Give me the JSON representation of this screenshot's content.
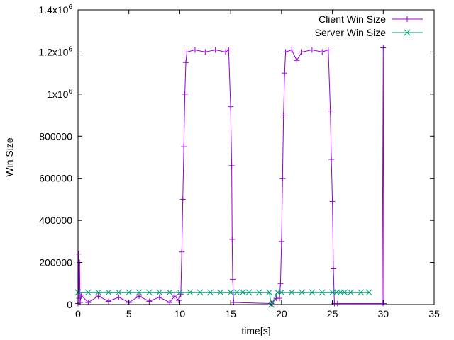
{
  "chart_data": {
    "type": "line",
    "title": "",
    "xlabel": "time[s]",
    "ylabel": "Win Size",
    "xlim": [
      0,
      35
    ],
    "ylim": [
      0,
      1400000
    ],
    "grid": false,
    "legend_position": "top-right",
    "x_ticks": [
      {
        "value": 0,
        "label": "0"
      },
      {
        "value": 5,
        "label": "5"
      },
      {
        "value": 10,
        "label": "10"
      },
      {
        "value": 15,
        "label": "15"
      },
      {
        "value": 20,
        "label": "20"
      },
      {
        "value": 25,
        "label": "25"
      },
      {
        "value": 30,
        "label": "30"
      },
      {
        "value": 35,
        "label": "35"
      }
    ],
    "y_ticks": [
      {
        "value": 0,
        "label": "0",
        "sup": ""
      },
      {
        "value": 200000,
        "label": "200000",
        "sup": ""
      },
      {
        "value": 400000,
        "label": "400000",
        "sup": ""
      },
      {
        "value": 600000,
        "label": "600000",
        "sup": ""
      },
      {
        "value": 800000,
        "label": "800000",
        "sup": ""
      },
      {
        "value": 1000000,
        "label": "1x10",
        "sup": "6"
      },
      {
        "value": 1200000,
        "label": "1.2x10",
        "sup": "6"
      },
      {
        "value": 1400000,
        "label": "1.4x10",
        "sup": "6"
      }
    ],
    "series": [
      {
        "name": "Client Win Size",
        "color": "#9400d3",
        "marker": "plus",
        "points": [
          [
            0.0,
            5000
          ],
          [
            0.05,
            240000
          ],
          [
            0.1,
            30000
          ],
          [
            0.15,
            200000
          ],
          [
            0.2,
            10000
          ],
          [
            0.3,
            45000
          ],
          [
            1.0,
            10000
          ],
          [
            2.0,
            40000
          ],
          [
            3.0,
            15000
          ],
          [
            4.0,
            35000
          ],
          [
            5.0,
            10000
          ],
          [
            6.0,
            40000
          ],
          [
            7.0,
            15000
          ],
          [
            8.0,
            35000
          ],
          [
            9.0,
            10000
          ],
          [
            9.5,
            40000
          ],
          [
            9.9,
            20000
          ],
          [
            10.1,
            50000
          ],
          [
            10.2,
            250000
          ],
          [
            10.3,
            500000
          ],
          [
            10.4,
            750000
          ],
          [
            10.5,
            1000000
          ],
          [
            10.6,
            1150000
          ],
          [
            10.7,
            1200000
          ],
          [
            11.5,
            1210000
          ],
          [
            12.5,
            1200000
          ],
          [
            13.5,
            1210000
          ],
          [
            14.5,
            1200000
          ],
          [
            14.8,
            1210000
          ],
          [
            15.0,
            940000
          ],
          [
            15.1,
            660000
          ],
          [
            15.15,
            310000
          ],
          [
            15.2,
            120000
          ],
          [
            15.3,
            10000
          ],
          [
            19.0,
            5000
          ],
          [
            19.5,
            30000
          ],
          [
            19.8,
            30000
          ],
          [
            19.9,
            100000
          ],
          [
            20.0,
            300000
          ],
          [
            20.1,
            600000
          ],
          [
            20.2,
            900000
          ],
          [
            20.3,
            1100000
          ],
          [
            20.4,
            1200000
          ],
          [
            21.0,
            1210000
          ],
          [
            21.5,
            1160000
          ],
          [
            22.0,
            1200000
          ],
          [
            23.0,
            1210000
          ],
          [
            24.0,
            1200000
          ],
          [
            24.6,
            1210000
          ],
          [
            24.8,
            920000
          ],
          [
            24.9,
            690000
          ],
          [
            25.0,
            490000
          ],
          [
            25.1,
            170000
          ],
          [
            25.2,
            5000
          ],
          [
            25.5,
            5000
          ],
          [
            29.9,
            5000
          ],
          [
            30.0,
            1220000
          ],
          [
            30.05,
            5000
          ]
        ]
      },
      {
        "name": "Server Win Size",
        "color": "#009e73",
        "marker": "cross",
        "points": [
          [
            0.0,
            58000
          ],
          [
            1.0,
            58000
          ],
          [
            2.0,
            58000
          ],
          [
            3.0,
            58000
          ],
          [
            4.0,
            58000
          ],
          [
            5.0,
            58000
          ],
          [
            6.0,
            58000
          ],
          [
            7.0,
            58000
          ],
          [
            8.0,
            58000
          ],
          [
            9.0,
            58000
          ],
          [
            10.0,
            58000
          ],
          [
            11.0,
            58000
          ],
          [
            12.0,
            58000
          ],
          [
            13.0,
            58000
          ],
          [
            14.0,
            58000
          ],
          [
            15.0,
            58000
          ],
          [
            15.6,
            58000
          ],
          [
            16.2,
            58000
          ],
          [
            16.8,
            58000
          ],
          [
            17.8,
            58000
          ],
          [
            18.8,
            58000
          ],
          [
            19.0,
            0
          ],
          [
            19.6,
            58000
          ],
          [
            20.0,
            58000
          ],
          [
            21.0,
            58000
          ],
          [
            22.0,
            58000
          ],
          [
            23.0,
            58000
          ],
          [
            24.0,
            58000
          ],
          [
            25.0,
            58000
          ],
          [
            25.4,
            58000
          ],
          [
            25.8,
            58000
          ],
          [
            26.2,
            58000
          ],
          [
            26.8,
            58000
          ],
          [
            27.8,
            58000
          ],
          [
            28.6,
            58000
          ]
        ]
      }
    ]
  }
}
